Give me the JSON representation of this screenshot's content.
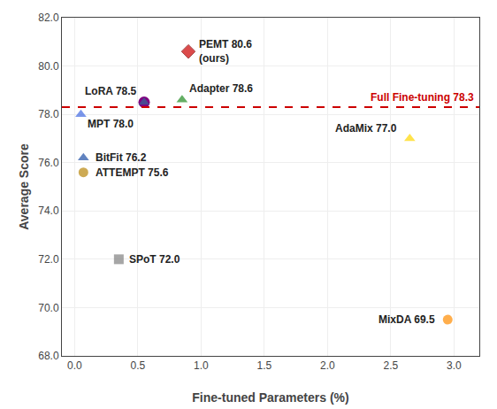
{
  "chart_data": {
    "type": "scatter",
    "xlabel": "Fine-tuned Parameters (%)",
    "ylabel": "Average Score",
    "points": [
      {
        "label": "PEMT 80.6\n(ours)",
        "x": 0.9,
        "y": 80.6,
        "marker": "diamond",
        "color": "#cc0000"
      },
      {
        "label": "LoRA 78.5",
        "x": 0.55,
        "y": 78.5,
        "marker": "triangle-up",
        "color": "#336699"
      },
      {
        "label": "Adapter 78.6",
        "x": 0.85,
        "y": 78.6,
        "marker": "triangle-up",
        "color": "#228B22"
      },
      {
        "label": "MPT 78.0",
        "x": 0.05,
        "y": 78.0,
        "marker": "triangle-up",
        "color": "#4169E1"
      },
      {
        "label": "AdaMix 77.0",
        "x": 2.65,
        "y": 77.0,
        "marker": "triangle-up",
        "color": "#FFD700"
      },
      {
        "label": "BitFit 76.2",
        "x": 0.07,
        "y": 76.2,
        "marker": "triangle-up",
        "color": "#1E4FA5"
      },
      {
        "label": "ATTEMPT 75.6",
        "x": 0.07,
        "y": 75.6,
        "marker": "circle",
        "color": "#B8860B"
      },
      {
        "label": "SPoT 72.0",
        "x": 0.35,
        "y": 72.0,
        "marker": "square",
        "color": "#808080"
      },
      {
        "label": "MixDA 69.5",
        "x": 2.95,
        "y": 69.5,
        "marker": "circle",
        "color": "#FF8C00"
      }
    ],
    "background_points": [
      {
        "x": 0.55,
        "y": 78.5,
        "marker": "circle",
        "color": "#800080"
      }
    ],
    "hline": {
      "y": 78.3,
      "label": "Full Fine-tuning 78.3",
      "color": "#cc0000",
      "line_style": "dash"
    },
    "xlim": [
      -0.1,
      3.2
    ],
    "ylim": [
      68.0,
      82.0
    ],
    "xticks": [
      {
        "value": 0.0,
        "label": "0.0"
      },
      {
        "value": 0.5,
        "label": "0.5"
      },
      {
        "value": 1.0,
        "label": "1.0"
      },
      {
        "value": 1.5,
        "label": "1.5"
      },
      {
        "value": 2.0,
        "label": "2.0"
      },
      {
        "value": 2.5,
        "label": "2.5"
      },
      {
        "value": 3.0,
        "label": "3.0"
      }
    ],
    "yticks": [
      {
        "value": 68.0,
        "label": "68.0"
      },
      {
        "value": 70.0,
        "label": "70.0"
      },
      {
        "value": 72.0,
        "label": "72.0"
      },
      {
        "value": 74.0,
        "label": "74.0"
      },
      {
        "value": 76.0,
        "label": "76.0"
      },
      {
        "value": 78.0,
        "label": "78.0"
      },
      {
        "value": 80.0,
        "label": "80.0"
      },
      {
        "value": 82.0,
        "label": "82.0"
      }
    ],
    "grid": true
  }
}
